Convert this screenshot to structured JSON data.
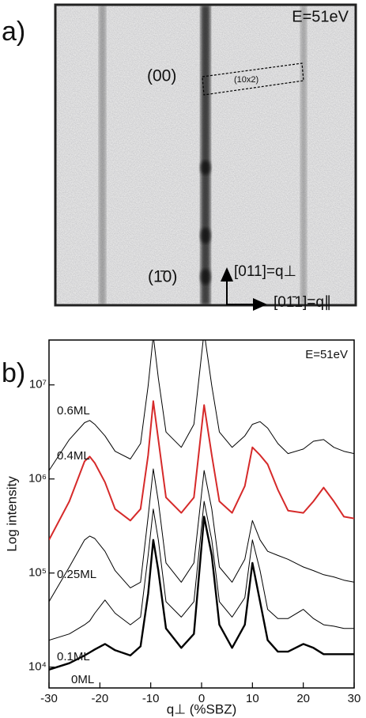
{
  "panel_a": {
    "label": "a)",
    "energy": "E=51eV",
    "spot_00": "(00)",
    "box": "(10x2)",
    "spot_10": "(1̄0)",
    "axis_perp": "[011]=q⊥",
    "axis_par": "[01̄1]=q∥"
  },
  "chart_data": {
    "type": "line",
    "panel_label": "b)",
    "annotation": "E=51eV",
    "x_label": "q⊥ (%SBZ)",
    "y_label": "Log intensity",
    "log_y": true,
    "xlim": [
      -30,
      30
    ],
    "xticks": [
      -30,
      -20,
      -10,
      0,
      10,
      20,
      30
    ],
    "ylim": [
      6000,
      30000000
    ],
    "yticks": [
      {
        "value": 10000,
        "label": "10⁴"
      },
      {
        "value": 100000,
        "label": "10⁵"
      },
      {
        "value": 1000000,
        "label": "10⁶"
      },
      {
        "value": 10000000,
        "label": "10⁷"
      }
    ],
    "x": [
      -30,
      -26,
      -23,
      -22,
      -21,
      -19,
      -17,
      -14,
      -12,
      -10.5,
      -9.5,
      -8.5,
      -7,
      -4,
      -1.5,
      0.5,
      2,
      3.5,
      6,
      8.5,
      10,
      11.5,
      13,
      15,
      17,
      20,
      22,
      24,
      26,
      28,
      30
    ],
    "series": [
      {
        "name": "0.6ML",
        "color": "#000000",
        "width": 1,
        "values": [
          1230000,
          2620000,
          3970000,
          4190000,
          3810000,
          2870000,
          1970000,
          1630000,
          2380000,
          9780000,
          33400000,
          11800000,
          3160000,
          2170000,
          3810000,
          36800000,
          9780000,
          3160000,
          2170000,
          2870000,
          3810000,
          4070000,
          3470000,
          2380000,
          1860000,
          2080000,
          2520000,
          2620000,
          2170000,
          1970000,
          1860000
        ]
      },
      {
        "name": "0.4ML",
        "color": "#d62a2a",
        "width": 2,
        "values": [
          225000,
          578000,
          1540000,
          1730000,
          1480000,
          924000,
          479000,
          361000,
          479000,
          1790000,
          6720000,
          2620000,
          636000,
          436000,
          636000,
          6110000,
          1790000,
          578000,
          436000,
          840000,
          2170000,
          1790000,
          1430000,
          768000,
          461000,
          436000,
          578000,
          810000,
          578000,
          397000,
          381000
        ]
      },
      {
        "name": "0.25ML",
        "color": "#000000",
        "width": 1,
        "values": [
          49600,
          116000,
          225000,
          247000,
          233000,
          170000,
          106000,
          69600,
          79800,
          397000,
          1280000,
          578000,
          128000,
          79800,
          128000,
          1230000,
          479000,
          116000,
          79800,
          140000,
          361000,
          225000,
          170000,
          154000,
          140000,
          116000,
          106000,
          96000,
          90900,
          84000,
          79800
        ]
      },
      {
        "name": "0.1ML",
        "color": "#000000",
        "width": 1,
        "values": [
          19300,
          22500,
          28200,
          31000,
          37400,
          51600,
          37400,
          28200,
          34000,
          154000,
          479000,
          225000,
          49600,
          34000,
          49600,
          578000,
          225000,
          49600,
          34000,
          54600,
          225000,
          106000,
          41100,
          32800,
          32800,
          41100,
          32800,
          28200,
          27200,
          25700,
          25700
        ]
      },
      {
        "name": "0ML",
        "color": "#000000",
        "width": 2.4,
        "values": [
          9400,
          11000,
          13300,
          14300,
          15400,
          17600,
          15100,
          13300,
          16600,
          60000,
          225000,
          106000,
          25700,
          16000,
          22500,
          397000,
          154000,
          28200,
          16000,
          28200,
          128000,
          49600,
          19300,
          14600,
          14600,
          17600,
          16000,
          13700,
          13700,
          13700,
          13700
        ]
      }
    ]
  }
}
